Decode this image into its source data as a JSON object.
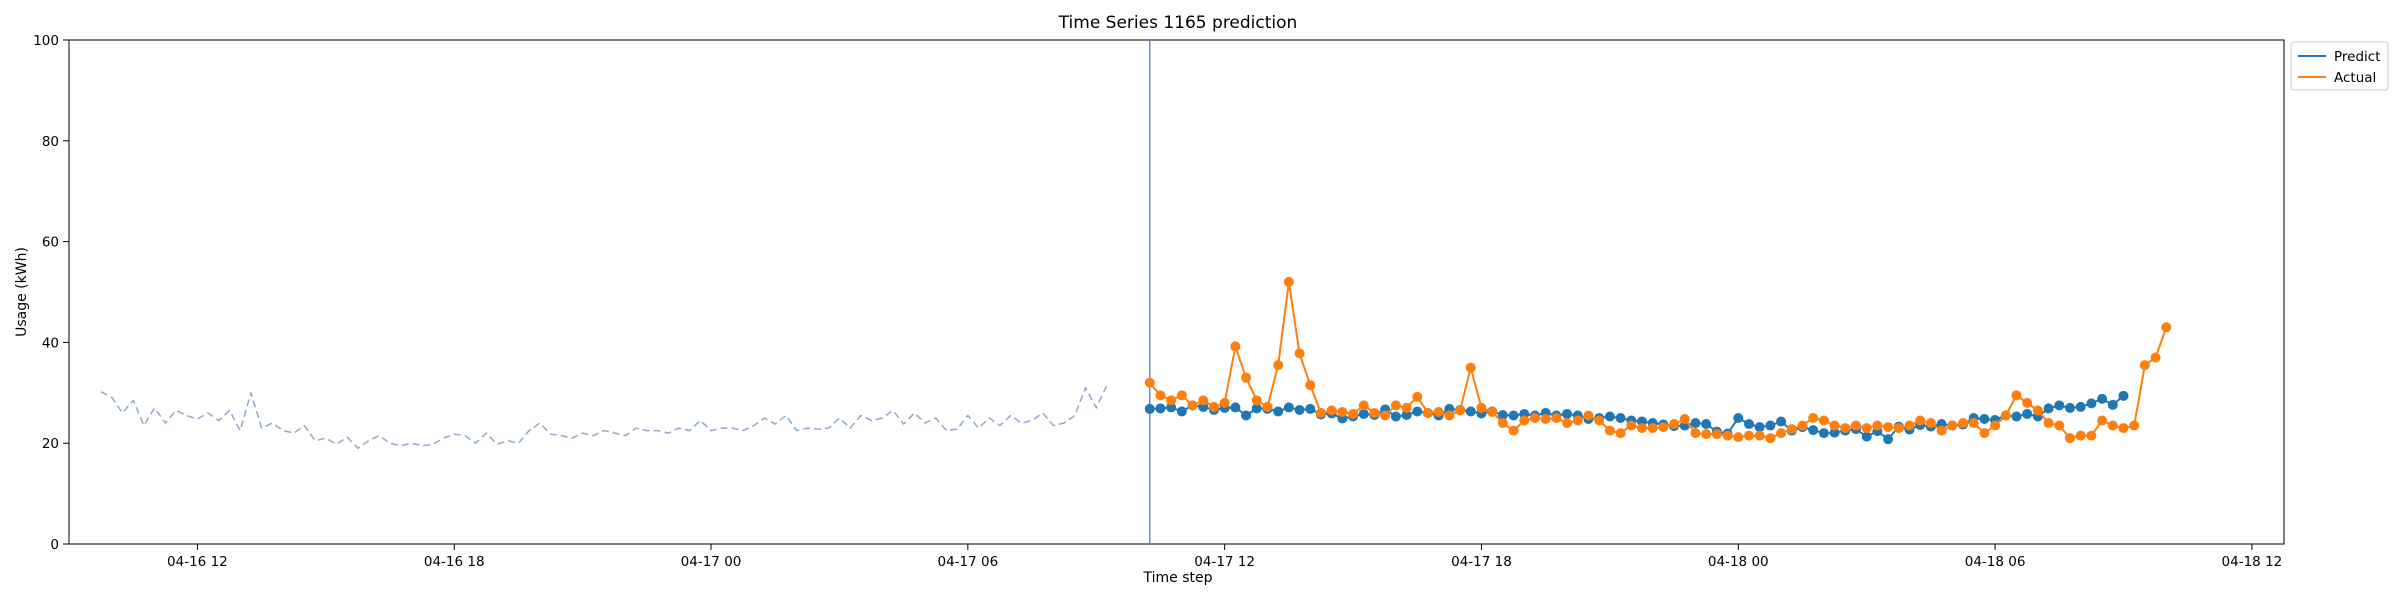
{
  "chart_data": {
    "type": "line",
    "title": "Time Series 1165 prediction",
    "xlabel": "Time step",
    "ylabel": "Usage (kWh)",
    "ylim": [
      0,
      100
    ],
    "yticks": [
      0,
      20,
      40,
      60,
      80,
      100
    ],
    "x_axis": {
      "start": "2024-04-16T09:00",
      "end": "2024-04-18T12:45",
      "ticks": [
        {
          "t": "2024-04-16T12:00",
          "label": "04-16 12"
        },
        {
          "t": "2024-04-16T18:00",
          "label": "04-16 18"
        },
        {
          "t": "2024-04-17T00:00",
          "label": "04-17 00"
        },
        {
          "t": "2024-04-17T06:00",
          "label": "04-17 06"
        },
        {
          "t": "2024-04-17T12:00",
          "label": "04-17 12"
        },
        {
          "t": "2024-04-17T18:00",
          "label": "04-17 18"
        },
        {
          "t": "2024-04-18T00:00",
          "label": "04-18 00"
        },
        {
          "t": "2024-04-18T06:00",
          "label": "04-18 06"
        },
        {
          "t": "2024-04-18T12:00",
          "label": "04-18 12"
        }
      ]
    },
    "forecast_start": "2024-04-17T10:15",
    "step_minutes": 15,
    "grid": false,
    "legend": {
      "placement": "upper right, outside plot",
      "entries": [
        {
          "name": "Predict",
          "color": "#1f77b4"
        },
        {
          "name": "Actual",
          "color": "#ff7f0e"
        }
      ]
    },
    "series": [
      {
        "name": "History",
        "style": "dashed",
        "color": "#8fa8cc",
        "start": "2024-04-16T09:45",
        "values": [
          30.2,
          29.1,
          26.0,
          28.5,
          23.5,
          27.0,
          24.0,
          26.5,
          25.5,
          24.8,
          26.0,
          24.5,
          26.5,
          22.5,
          30.0,
          23.0,
          24.0,
          22.5,
          22.0,
          23.5,
          20.5,
          21.0,
          19.8,
          21.2,
          19.0,
          20.5,
          21.5,
          20.0,
          19.5,
          20.0,
          19.5,
          19.8,
          21.0,
          21.8,
          21.5,
          20.0,
          22.0,
          19.8,
          20.5,
          20.0,
          22.5,
          24.0,
          21.8,
          21.5,
          21.0,
          22.0,
          21.5,
          22.5,
          22.0,
          21.5,
          23.0,
          22.5,
          22.5,
          22.0,
          23.0,
          22.5,
          24.5,
          22.5,
          23.0,
          23.0,
          22.5,
          23.5,
          25.0,
          23.8,
          25.5,
          22.5,
          23.0,
          22.8,
          23.0,
          25.0,
          23.0,
          25.5,
          24.5,
          25.0,
          26.5,
          23.8,
          26.0,
          24.0,
          25.0,
          22.5,
          22.8,
          25.5,
          23.0,
          25.0,
          23.5,
          25.5,
          24.0,
          24.5,
          26.0,
          23.5,
          24.0,
          25.5,
          31.0,
          27.0,
          31.5
        ]
      },
      {
        "name": "Predict",
        "style": "solid-marker",
        "color": "#1f77b4",
        "start": "2024-04-17T10:15",
        "values": [
          26.8,
          26.9,
          27.1,
          26.3,
          27.5,
          27.2,
          26.6,
          27.0,
          27.1,
          25.5,
          26.9,
          26.8,
          26.3,
          27.1,
          26.6,
          26.8,
          25.7,
          25.9,
          24.9,
          25.3,
          25.8,
          25.6,
          26.7,
          25.3,
          25.6,
          26.3,
          26.0,
          25.5,
          26.8,
          26.6,
          26.3,
          25.9,
          26.3,
          25.6,
          25.5,
          25.8,
          25.5,
          26.0,
          25.5,
          25.8,
          25.5,
          24.8,
          25.0,
          25.3,
          25.0,
          24.5,
          24.3,
          24.0,
          23.7,
          23.4,
          23.5,
          24.0,
          23.8,
          22.3,
          21.9,
          25.0,
          23.8,
          23.2,
          23.5,
          24.3,
          22.5,
          23.2,
          22.6,
          22.0,
          22.1,
          22.5,
          22.8,
          21.3,
          22.4,
          20.8,
          23.3,
          22.7,
          23.6,
          23.3,
          23.8,
          23.5,
          23.7,
          25.0,
          24.8,
          24.6,
          25.5,
          25.3,
          25.8,
          25.3,
          26.9,
          27.5,
          27.0,
          27.2,
          27.9,
          28.8,
          27.6,
          29.4
        ]
      },
      {
        "name": "Actual",
        "style": "solid-marker",
        "color": "#ff7f0e",
        "start": "2024-04-17T10:15",
        "values": [
          32.0,
          29.5,
          28.5,
          29.5,
          27.5,
          28.5,
          27.2,
          28.0,
          39.2,
          33.0,
          28.5,
          27.2,
          35.5,
          52.0,
          37.8,
          31.5,
          26.0,
          26.5,
          26.2,
          25.8,
          27.5,
          26.0,
          25.5,
          27.5,
          27.0,
          29.2,
          26.0,
          26.2,
          25.5,
          26.5,
          35.0,
          27.0,
          26.2,
          24.0,
          22.5,
          24.5,
          25.0,
          24.8,
          25.0,
          24.0,
          24.5,
          25.5,
          24.5,
          22.5,
          22.0,
          23.5,
          23.0,
          23.0,
          23.2,
          23.8,
          24.8,
          22.0,
          21.8,
          21.8,
          21.5,
          21.2,
          21.5,
          21.5,
          21.0,
          22.0,
          22.8,
          23.5,
          25.0,
          24.5,
          23.5,
          23.0,
          23.5,
          23.0,
          23.5,
          23.2,
          23.0,
          23.5,
          24.5,
          24.0,
          22.5,
          23.5,
          24.0,
          24.0,
          22.0,
          23.5,
          25.5,
          29.5,
          28.0,
          26.5,
          24.0,
          23.5,
          21.0,
          21.5,
          21.5,
          24.5,
          23.5,
          23.0,
          23.5,
          35.5,
          37.0,
          43.0
        ]
      }
    ]
  }
}
